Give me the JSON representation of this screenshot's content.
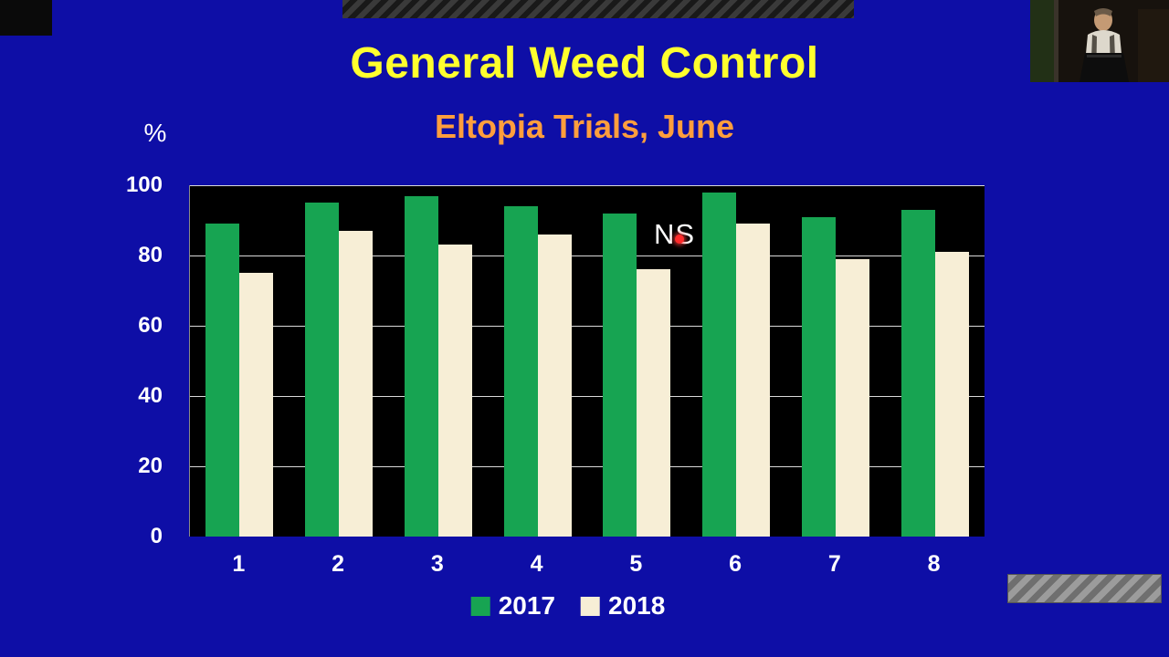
{
  "slide": {
    "title": "General Weed Control",
    "subtitle": "Eltopia Trials, June",
    "title_color": "#ffff2e",
    "subtitle_color": "#ff9e3d"
  },
  "chart_data": {
    "type": "bar",
    "title": "General Weed Control",
    "subtitle": "Eltopia Trials, June",
    "ylabel": "%",
    "xlabel": "",
    "categories": [
      "1",
      "2",
      "3",
      "4",
      "5",
      "6",
      "7",
      "8"
    ],
    "series": [
      {
        "name": "2017",
        "color": "#17a452",
        "values": [
          89,
          95,
          97,
          94,
          92,
          98,
          91,
          93
        ]
      },
      {
        "name": "2018",
        "color": "#f7eed6",
        "values": [
          75,
          87,
          83,
          86,
          76,
          89,
          79,
          81
        ]
      }
    ],
    "ylim": [
      0,
      100
    ],
    "yticks": [
      0,
      20,
      40,
      60,
      80,
      100
    ],
    "grid": true,
    "plot_background": "#000000",
    "legend_position": "bottom",
    "annotations": [
      {
        "text": "NS",
        "near_category": "5",
        "y": 87
      }
    ]
  },
  "overlay": {
    "laser_pointer_color": "#ff2a2a"
  }
}
